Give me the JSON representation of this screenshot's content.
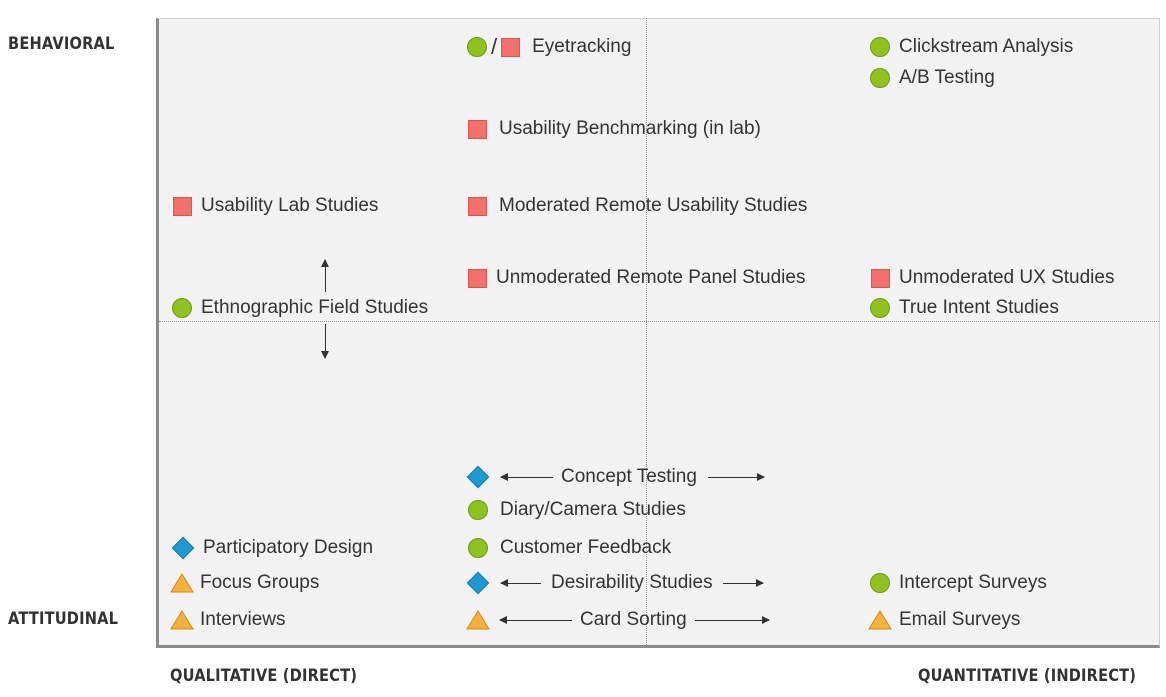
{
  "axes": {
    "y_top": "BEHAVIORAL",
    "y_bottom": "ATTITUDINAL",
    "x_left": "QUALITATIVE (DIRECT)",
    "x_right": "QUANTITATIVE (INDIRECT)"
  },
  "legend_colors": {
    "circle": "#8dc21f",
    "square": "#f2716b",
    "diamond": "#1f9ad1",
    "triangle": "#f6b13a"
  },
  "methods": {
    "eyetracking": {
      "label": "Eyetracking",
      "slash": "/"
    },
    "clickstream": {
      "label": "Clickstream Analysis"
    },
    "ab_testing": {
      "label": "A/B Testing"
    },
    "usability_benchmarking": {
      "label": "Usability Benchmarking (in lab)"
    },
    "usability_lab": {
      "label": "Usability Lab Studies"
    },
    "moderated_remote": {
      "label": "Moderated Remote Usability Studies"
    },
    "unmoderated_panel": {
      "label": "Unmoderated Remote Panel Studies"
    },
    "unmoderated_ux": {
      "label": "Unmoderated UX Studies"
    },
    "ethnographic": {
      "label": "Ethnographic Field Studies"
    },
    "true_intent": {
      "label": "True Intent Studies"
    },
    "concept_testing": {
      "label": "Concept Testing"
    },
    "diary_camera": {
      "label": "Diary/Camera Studies"
    },
    "participatory_design": {
      "label": "Participatory Design"
    },
    "customer_feedback": {
      "label": "Customer Feedback"
    },
    "focus_groups": {
      "label": "Focus Groups"
    },
    "desirability": {
      "label": "Desirability Studies"
    },
    "intercept_surveys": {
      "label": "Intercept Surveys"
    },
    "interviews": {
      "label": "Interviews"
    },
    "card_sorting": {
      "label": "Card Sorting"
    },
    "email_surveys": {
      "label": "Email Surveys"
    }
  }
}
